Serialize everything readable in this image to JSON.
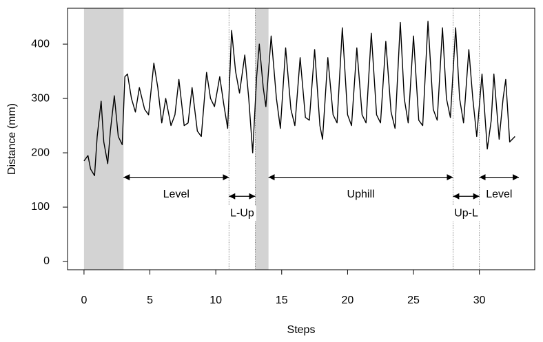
{
  "chart_data": {
    "type": "line",
    "x_label": "Steps",
    "y_label": "Distance (mm)",
    "x": [
      0,
      0.3,
      0.5,
      0.8,
      1.0,
      1.3,
      1.5,
      1.8,
      2.0,
      2.3,
      2.6,
      2.9,
      3.1,
      3.3,
      3.6,
      3.9,
      4.2,
      4.6,
      4.9,
      5.3,
      5.6,
      5.9,
      6.2,
      6.6,
      6.9,
      7.2,
      7.6,
      7.9,
      8.2,
      8.6,
      8.9,
      9.3,
      9.6,
      9.9,
      10.3,
      10.6,
      10.9,
      11.2,
      11.5,
      11.8,
      12.2,
      12.5,
      12.8,
      13.1,
      13.3,
      13.6,
      13.8,
      14.2,
      14.6,
      14.9,
      15.3,
      15.7,
      16.0,
      16.4,
      16.8,
      17.1,
      17.5,
      17.9,
      18.1,
      18.5,
      18.9,
      19.2,
      19.6,
      20.0,
      20.3,
      20.7,
      21.1,
      21.4,
      21.8,
      22.2,
      22.5,
      22.9,
      23.3,
      23.6,
      24.0,
      24.3,
      24.6,
      25.0,
      25.4,
      25.7,
      26.1,
      26.5,
      26.8,
      27.2,
      27.5,
      27.8,
      28.2,
      28.5,
      28.8,
      29.2,
      29.5,
      29.8,
      30.2,
      30.6,
      30.9,
      31.1,
      31.5,
      31.8,
      32.0,
      32.3,
      32.7
    ],
    "series": [
      {
        "color": "#000000",
        "values": [
          185,
          195,
          170,
          158,
          230,
          295,
          220,
          180,
          240,
          305,
          230,
          215,
          340,
          345,
          300,
          275,
          320,
          280,
          270,
          365,
          320,
          255,
          300,
          250,
          270,
          335,
          250,
          255,
          320,
          240,
          230,
          348,
          300,
          285,
          340,
          290,
          245,
          425,
          350,
          310,
          380,
          300,
          200,
          340,
          400,
          320,
          285,
          415,
          300,
          245,
          393,
          280,
          250,
          375,
          265,
          260,
          390,
          250,
          225,
          375,
          270,
          255,
          430,
          270,
          250,
          393,
          270,
          255,
          420,
          270,
          255,
          405,
          275,
          245,
          440,
          300,
          255,
          415,
          260,
          250,
          442,
          280,
          260,
          430,
          300,
          265,
          430,
          300,
          255,
          390,
          300,
          230,
          345,
          207,
          260,
          345,
          225,
          300,
          335,
          220,
          230
        ]
      }
    ],
    "xlim": [
      -1.25,
      34.2
    ],
    "ylim": [
      -15.2,
      466
    ],
    "xticks": [
      0,
      5,
      10,
      15,
      20,
      25,
      30
    ],
    "yticks": [
      0,
      100,
      200,
      300,
      400
    ],
    "shaded_regions": [
      [
        0,
        3
      ],
      [
        13,
        14
      ]
    ],
    "vlines": [
      11,
      13,
      28,
      30
    ],
    "annotations": [
      {
        "text": "Level",
        "x": [
          3,
          11
        ],
        "y": 155
      },
      {
        "text": "L-Up",
        "x": [
          11,
          13
        ],
        "y": 120
      },
      {
        "text": "Uphill",
        "x": [
          14,
          28
        ],
        "y": 155
      },
      {
        "text": "Up-L",
        "x": [
          28,
          30
        ],
        "y": 120
      },
      {
        "text": "Level",
        "x": [
          30,
          33
        ],
        "y": 155
      }
    ]
  }
}
